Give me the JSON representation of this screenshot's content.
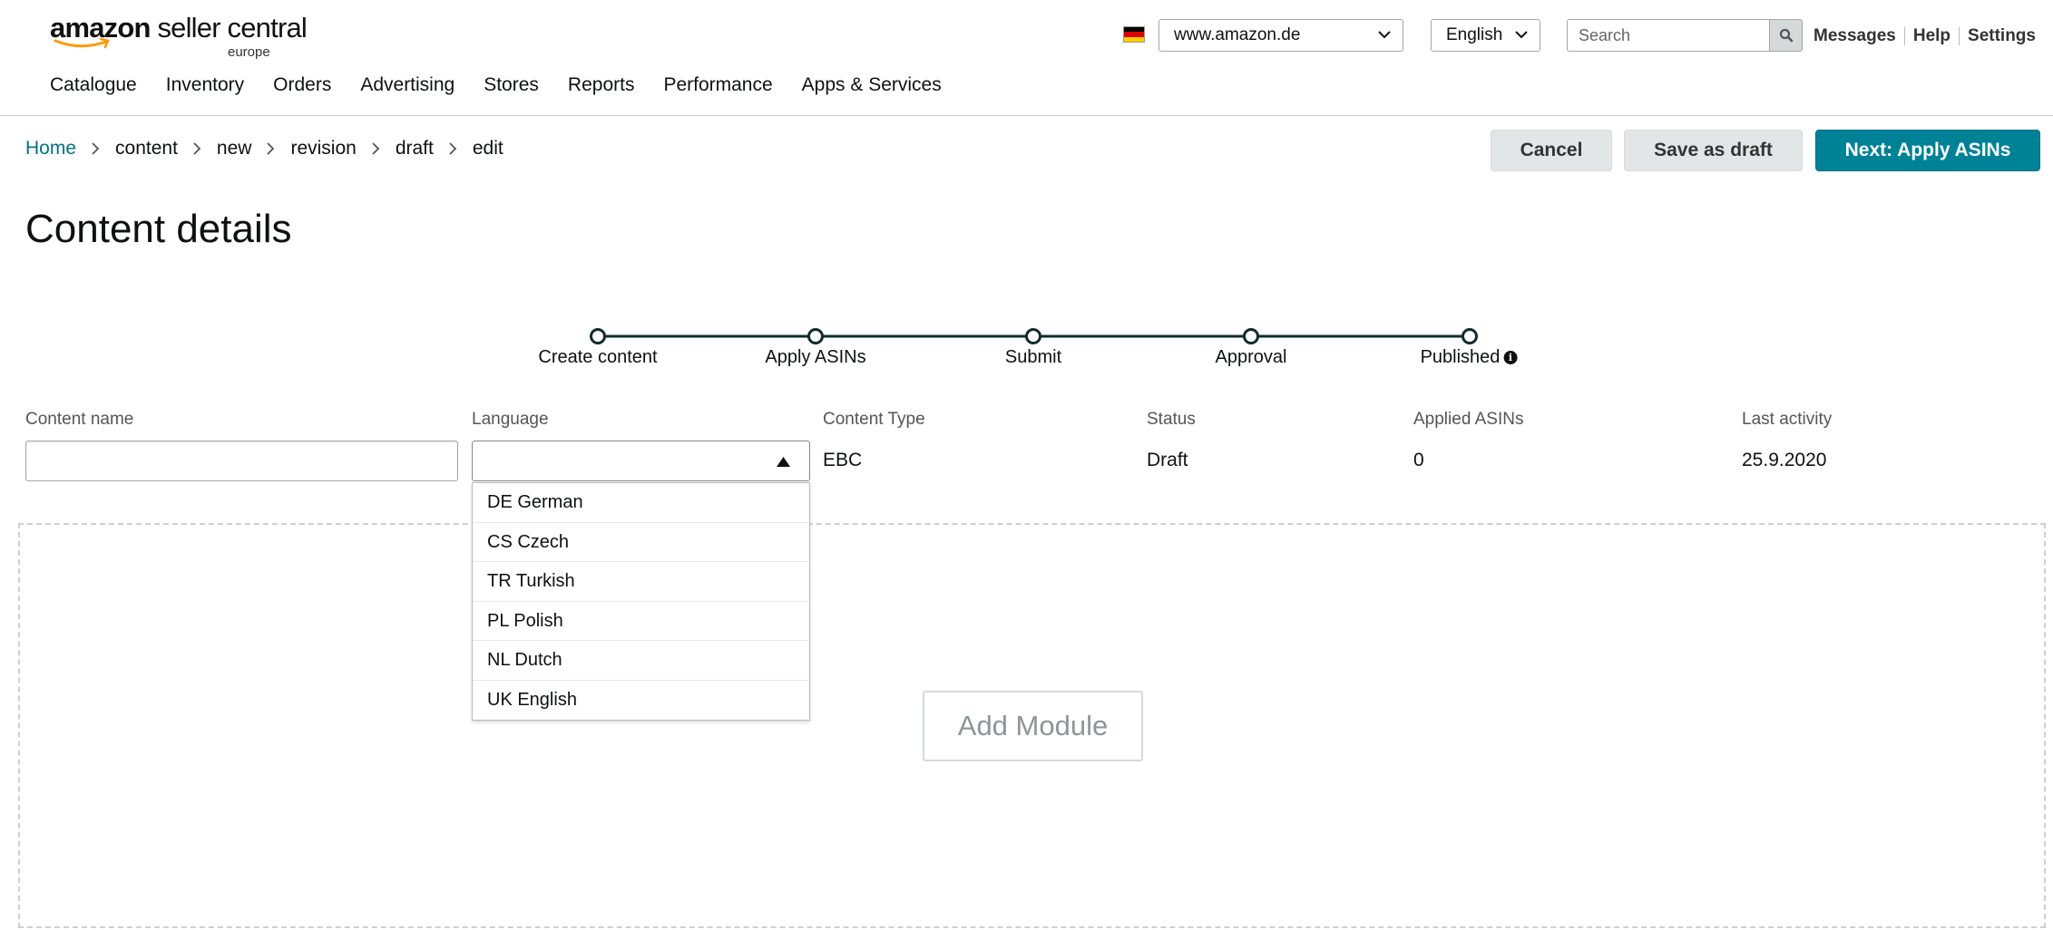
{
  "header": {
    "logo": {
      "brand": "amazon",
      "product": "seller central",
      "region": "europe"
    },
    "flag_colors": [
      "#000000",
      "#dd0000",
      "#ffce00"
    ],
    "marketplace": {
      "selected": "www.amazon.de"
    },
    "language_select": {
      "selected": "English"
    },
    "search": {
      "placeholder": "Search"
    },
    "links": [
      {
        "label": "Messages"
      },
      {
        "label": "Help"
      },
      {
        "label": "Settings"
      }
    ]
  },
  "nav": {
    "items": [
      {
        "label": "Catalogue"
      },
      {
        "label": "Inventory"
      },
      {
        "label": "Orders"
      },
      {
        "label": "Advertising"
      },
      {
        "label": "Stores"
      },
      {
        "label": "Reports"
      },
      {
        "label": "Performance"
      },
      {
        "label": "Apps & Services"
      }
    ]
  },
  "breadcrumb": {
    "items": [
      {
        "label": "Home"
      },
      {
        "label": "content"
      },
      {
        "label": "new"
      },
      {
        "label": "revision"
      },
      {
        "label": "draft"
      },
      {
        "label": "edit"
      }
    ]
  },
  "actions": {
    "cancel": "Cancel",
    "save_draft": "Save as draft",
    "next": "Next: Apply ASINs",
    "accent": "#008296"
  },
  "page_title": "Content details",
  "stepper": {
    "steps": [
      {
        "label": "Create content"
      },
      {
        "label": "Apply ASINs"
      },
      {
        "label": "Submit"
      },
      {
        "label": "Approval"
      },
      {
        "label": "Published"
      }
    ]
  },
  "details": {
    "content_name": {
      "label": "Content name",
      "value": ""
    },
    "language": {
      "label": "Language",
      "value": ""
    },
    "content_type": {
      "label": "Content Type",
      "value": "EBC"
    },
    "status": {
      "label": "Status",
      "value": "Draft"
    },
    "applied_asins": {
      "label": "Applied ASINs",
      "value": "0"
    },
    "last_activity": {
      "label": "Last activity",
      "value": "25.9.2020"
    }
  },
  "language_dropdown": {
    "options": [
      {
        "label": "DE German"
      },
      {
        "label": "CS Czech"
      },
      {
        "label": "TR Turkish"
      },
      {
        "label": "PL Polish"
      },
      {
        "label": "NL Dutch"
      },
      {
        "label": "UK English"
      }
    ]
  },
  "module_area": {
    "add_module": "Add Module"
  }
}
